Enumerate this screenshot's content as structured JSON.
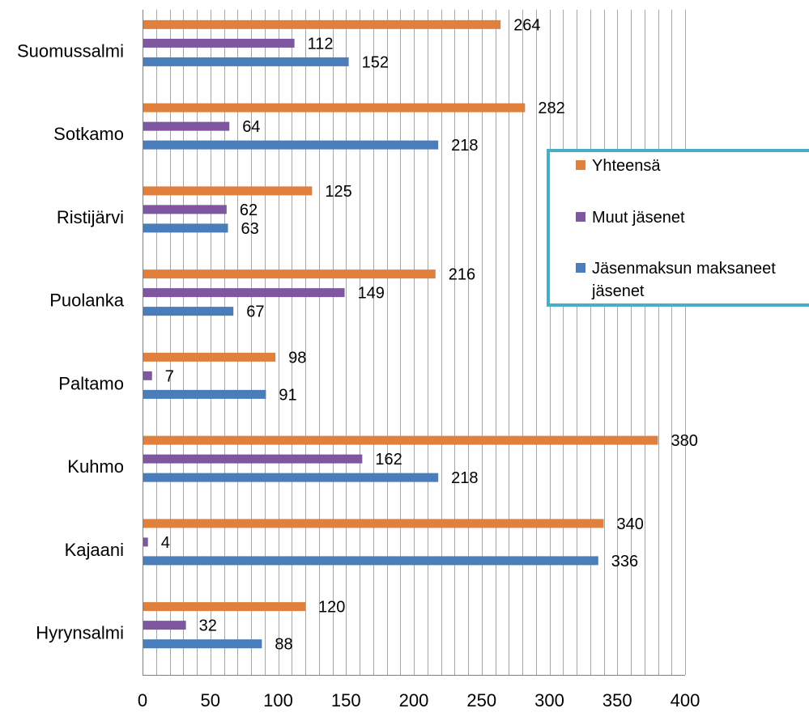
{
  "chart_data": {
    "type": "bar",
    "orientation": "horizontal",
    "categories": [
      "Suomussalmi",
      "Sotkamo",
      "Ristijärvi",
      "Puolanka",
      "Paltamo",
      "Kuhmo",
      "Kajaani",
      "Hyrynsalmi"
    ],
    "series": [
      {
        "name": "Yhteensä",
        "color": "#E0803C",
        "values": [
          264,
          282,
          125,
          216,
          98,
          380,
          340,
          120
        ]
      },
      {
        "name": "Muut jäsenet",
        "color": "#7E57A0",
        "values": [
          112,
          64,
          62,
          149,
          7,
          162,
          4,
          32
        ]
      },
      {
        "name": "Jäsenmaksun maksaneet jäsenet",
        "legend_lines": [
          "Jäsenmaksun maksaneet",
          "jäsenet"
        ],
        "color": "#4A7EBB",
        "values": [
          152,
          218,
          63,
          67,
          91,
          218,
          336,
          88
        ]
      }
    ],
    "xlim": [
      0,
      400
    ],
    "x_ticks": [
      0,
      50,
      100,
      150,
      200,
      250,
      300,
      350,
      400
    ],
    "grid": true,
    "legend_position": "right",
    "legend_border_color": "#4BACC6",
    "data_labels": true
  }
}
